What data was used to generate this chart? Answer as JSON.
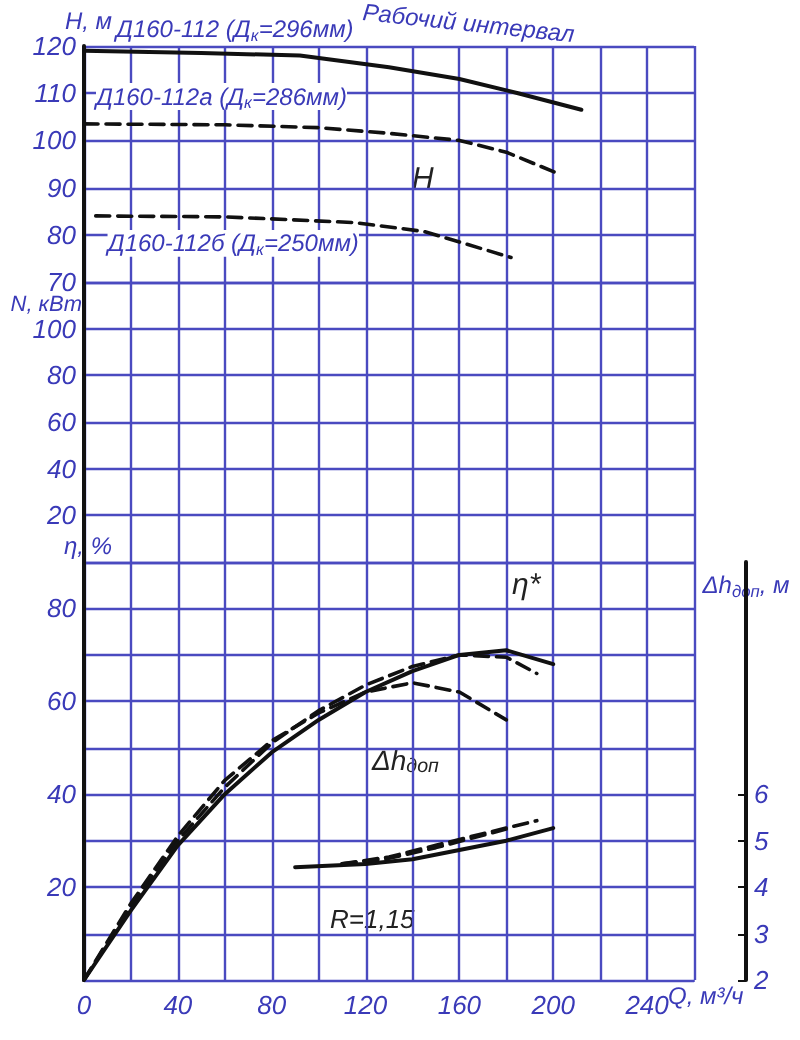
{
  "chart_data": [
    {
      "type": "line",
      "ylabel": "H, м",
      "xlim": [
        0,
        260
      ],
      "xticks": [
        0,
        {
          "value": 20,
          "label": null
        },
        40,
        {
          "value": 60,
          "label": null
        },
        80,
        {
          "value": 100,
          "label": null
        },
        120,
        {
          "value": 140,
          "label": null
        },
        160,
        {
          "value": 180,
          "label": null
        },
        200,
        {
          "value": 220,
          "label": null
        },
        240,
        {
          "value": 260,
          "label": null
        }
      ],
      "ylim": [
        70,
        120
      ],
      "yticks": [
        70,
        80,
        90,
        100,
        110,
        120
      ],
      "tick_labels": "y",
      "grid": true,
      "marker": "none",
      "series": [
        {
          "name": "Д160-112 (Д$_{к}$=296мм)",
          "color": "#111111",
          "line_style": "solid",
          "x": [
            0,
            50,
            92,
            130,
            160,
            185,
            212
          ],
          "values": [
            119,
            118.5,
            118,
            115.5,
            113,
            110,
            106.5
          ]
        },
        {
          "name": "Д160-112а (Д$_{к}$=286мм)",
          "color": "#111111",
          "line_style": "dashed",
          "x": [
            0,
            60,
            100,
            130,
            160,
            180,
            202
          ],
          "values": [
            103.5,
            103.3,
            102.7,
            101.5,
            100,
            97.5,
            93
          ]
        },
        {
          "name": "Д160-112б (Д$_{к}$=250мм)",
          "color": "#111111",
          "line_style": "dashed",
          "x": [
            5,
            60,
            115,
            145,
            182
          ],
          "values": [
            84,
            83.8,
            82.6,
            80.7,
            75.2
          ]
        }
      ],
      "annotations": [
        "Рабочий интервал",
        "H"
      ]
    },
    {
      "type": "line",
      "ylabel": "N, кВт",
      "xlim": [
        0,
        260
      ],
      "xticks": [
        0,
        {
          "value": 20,
          "label": null
        },
        40,
        {
          "value": 60,
          "label": null
        },
        80,
        {
          "value": 100,
          "label": null
        },
        120,
        {
          "value": 140,
          "label": null
        },
        160,
        {
          "value": 180,
          "label": null
        },
        200,
        {
          "value": 220,
          "label": null
        },
        240,
        {
          "value": 260,
          "label": null
        }
      ],
      "ylim": [
        0,
        120
      ],
      "yticks": [
        {
          "value": 0,
          "label": null
        },
        20,
        40,
        60,
        80,
        100,
        {
          "value": 120,
          "label": null
        }
      ],
      "tick_labels": "y",
      "grid": true
    },
    {
      "type": "line",
      "xlabel": "Q, м³/ч",
      "ylabel": "η, %",
      "y2label": "Δh$_{доп}$, м",
      "xlim": [
        0,
        260
      ],
      "xticks": [
        0,
        {
          "value": 20,
          "label": null
        },
        40,
        {
          "value": 60,
          "label": null
        },
        80,
        {
          "value": 100,
          "label": null
        },
        120,
        {
          "value": 140,
          "label": null
        },
        160,
        {
          "value": 180,
          "label": null
        },
        200,
        {
          "value": 220,
          "label": null
        },
        240,
        {
          "value": 260,
          "label": null
        }
      ],
      "ylim": [
        0,
        90
      ],
      "yticks": [
        {
          "value": 0,
          "label": null
        },
        {
          "value": 10,
          "label": null
        },
        20,
        {
          "value": 30,
          "label": null
        },
        40,
        {
          "value": 50,
          "label": null
        },
        60,
        {
          "value": 70,
          "label": null
        },
        80,
        {
          "value": 90,
          "label": null
        }
      ],
      "y2lim": [
        2,
        11
      ],
      "y2ticks": [
        2,
        3,
        4,
        5,
        6
      ],
      "grid": true,
      "marker": "none",
      "series": [
        {
          "color": "#111111",
          "line_style": "solid",
          "x": [
            0,
            20,
            40,
            60,
            80,
            100,
            120,
            140,
            160,
            180,
            200
          ],
          "values": [
            0,
            15,
            29,
            40,
            49,
            56,
            62,
            66.5,
            70,
            71,
            68
          ]
        },
        {
          "color": "#111111",
          "line_style": "dashed",
          "x": [
            0,
            20,
            40,
            60,
            80,
            100,
            120,
            140,
            160,
            180,
            193
          ],
          "values": [
            0,
            16,
            30,
            41.5,
            51,
            58,
            63.5,
            67.5,
            70,
            69.5,
            66
          ]
        },
        {
          "color": "#111111",
          "line_style": "dashed",
          "x": [
            0,
            20,
            40,
            60,
            80,
            100,
            120,
            140,
            160,
            180
          ],
          "values": [
            0,
            16.5,
            31,
            43,
            51.5,
            57.5,
            62,
            64,
            62,
            56
          ]
        },
        {
          "color": "#111111",
          "line_style": "solid",
          "axis": "y2",
          "x": [
            90,
            120,
            140,
            160,
            180,
            200
          ],
          "values": [
            4.43,
            4.5,
            4.6,
            4.8,
            5.0,
            5.27
          ]
        },
        {
          "color": "#111111",
          "line_style": "dashed",
          "axis": "y2",
          "x": [
            110,
            130,
            150,
            170,
            193
          ],
          "values": [
            4.5,
            4.65,
            4.9,
            5.15,
            5.43
          ]
        },
        {
          "color": "#111111",
          "line_style": "dashed",
          "axis": "y2",
          "x": [
            110,
            130,
            150,
            180
          ],
          "values": [
            4.5,
            4.62,
            4.85,
            5.25
          ]
        }
      ],
      "annotations": [
        "η*",
        "Δh$_{доп}$",
        "R=1,15"
      ]
    }
  ]
}
